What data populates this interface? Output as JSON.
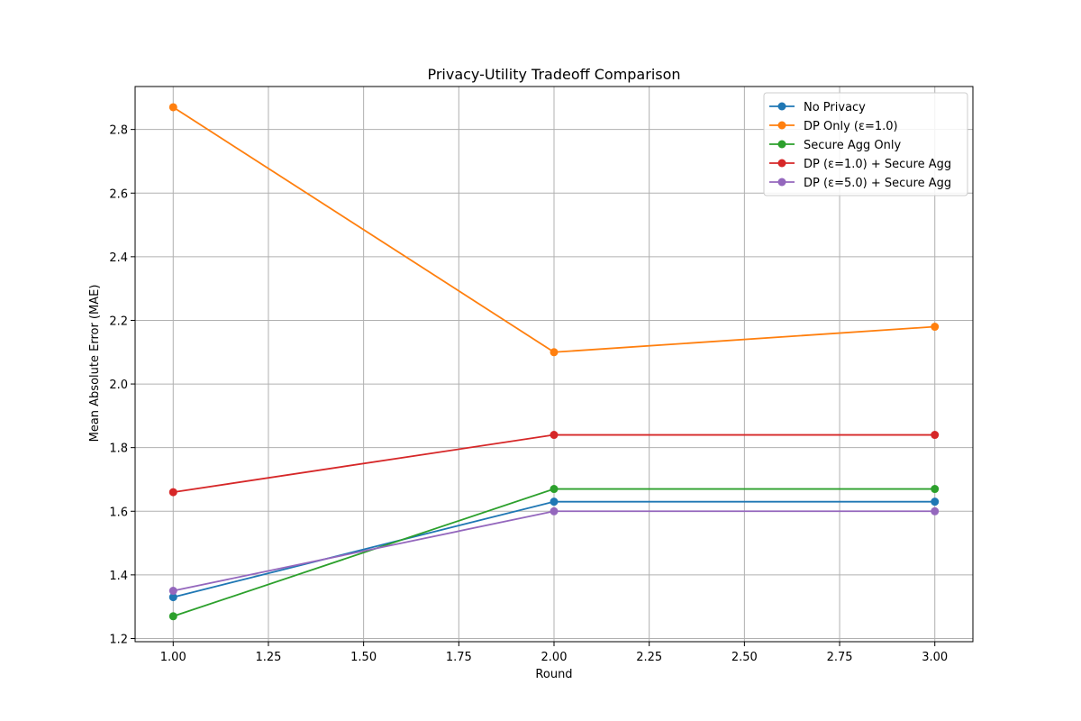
{
  "chart_data": {
    "type": "line",
    "title": "Privacy-Utility Tradeoff Comparison",
    "xlabel": "Round",
    "ylabel": "Mean Absolute Error (MAE)",
    "xlim": [
      0.9,
      3.1
    ],
    "ylim": [
      1.19,
      2.935
    ],
    "x_ticks": [
      1.0,
      1.25,
      1.5,
      1.75,
      2.0,
      2.25,
      2.5,
      2.75,
      3.0
    ],
    "x_tick_labels": [
      "1.00",
      "1.25",
      "1.50",
      "1.75",
      "2.00",
      "2.25",
      "2.50",
      "2.75",
      "3.00"
    ],
    "y_ticks": [
      1.2,
      1.4,
      1.6,
      1.8,
      2.0,
      2.2,
      2.4,
      2.6,
      2.8
    ],
    "y_tick_labels": [
      "1.2",
      "1.4",
      "1.6",
      "1.8",
      "2.0",
      "2.2",
      "2.4",
      "2.6",
      "2.8"
    ],
    "grid": true,
    "legend_position": "top-right",
    "x": [
      1,
      2,
      3
    ],
    "series": [
      {
        "name": "No Privacy",
        "color": "#1f77b4",
        "values": [
          1.33,
          1.63,
          1.63
        ]
      },
      {
        "name": "DP Only (ε=1.0)",
        "color": "#ff7f0e",
        "values": [
          2.87,
          2.1,
          2.18
        ]
      },
      {
        "name": "Secure Agg Only",
        "color": "#2ca02c",
        "values": [
          1.27,
          1.67,
          1.67
        ]
      },
      {
        "name": "DP (ε=1.0) + Secure Agg",
        "color": "#d62728",
        "values": [
          1.66,
          1.84,
          1.84
        ]
      },
      {
        "name": "DP (ε=5.0) + Secure Agg",
        "color": "#9467bd",
        "values": [
          1.35,
          1.6,
          1.6
        ]
      }
    ]
  }
}
